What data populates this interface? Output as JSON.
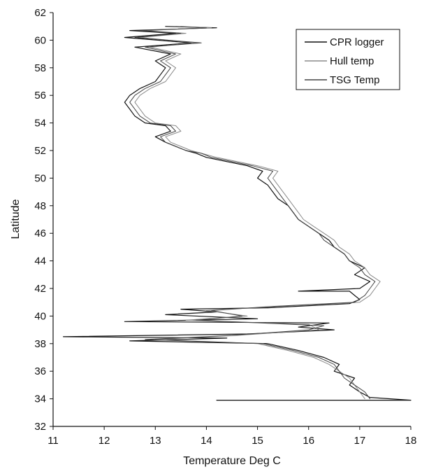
{
  "chart_data": {
    "type": "line",
    "title": "",
    "xlabel": "Temperature Deg C",
    "ylabel": "Latitude",
    "xlim": [
      11,
      18
    ],
    "ylim": [
      32,
      62
    ],
    "xticks": [
      "11",
      "12",
      "13",
      "14",
      "15",
      "16",
      "17",
      "18"
    ],
    "yticks": [
      "32",
      "34",
      "36",
      "38",
      "40",
      "42",
      "44",
      "46",
      "48",
      "50",
      "52",
      "54",
      "56",
      "58",
      "60",
      "62"
    ],
    "grid": false,
    "legend_position": "top-right",
    "series": [
      {
        "name": "CPR logger",
        "color": "#111111",
        "width": 1.2,
        "points": [
          [
            14.2,
            33.9
          ],
          [
            18.0,
            33.9
          ],
          [
            17.2,
            34.1
          ],
          [
            17.0,
            34.5
          ],
          [
            16.8,
            35.0
          ],
          [
            16.9,
            35.5
          ],
          [
            16.5,
            36.0
          ],
          [
            16.6,
            36.5
          ],
          [
            16.3,
            37.0
          ],
          [
            15.8,
            37.5
          ],
          [
            15.2,
            38.0
          ],
          [
            12.5,
            38.2
          ],
          [
            14.4,
            38.4
          ],
          [
            11.2,
            38.5
          ],
          [
            14.8,
            38.7
          ],
          [
            16.5,
            39.0
          ],
          [
            15.8,
            39.2
          ],
          [
            16.4,
            39.5
          ],
          [
            12.4,
            39.6
          ],
          [
            15.0,
            39.8
          ],
          [
            13.2,
            40.1
          ],
          [
            14.2,
            40.3
          ],
          [
            13.5,
            40.5
          ],
          [
            15.2,
            40.6
          ],
          [
            16.8,
            40.9
          ],
          [
            17.0,
            41.2
          ],
          [
            16.9,
            41.5
          ],
          [
            16.8,
            41.8
          ],
          [
            15.8,
            41.8
          ],
          [
            17.0,
            42.0
          ],
          [
            17.2,
            42.5
          ],
          [
            16.9,
            43.0
          ],
          [
            17.1,
            43.5
          ],
          [
            16.8,
            44.0
          ],
          [
            16.7,
            44.5
          ],
          [
            16.5,
            45.0
          ],
          [
            16.4,
            45.5
          ],
          [
            16.2,
            46.0
          ],
          [
            16.0,
            46.5
          ],
          [
            15.8,
            47.0
          ],
          [
            15.7,
            47.5
          ],
          [
            15.6,
            48.0
          ],
          [
            15.4,
            48.5
          ],
          [
            15.3,
            49.0
          ],
          [
            15.2,
            49.5
          ],
          [
            15.0,
            50.0
          ],
          [
            15.1,
            50.5
          ],
          [
            14.8,
            50.9
          ],
          [
            14.4,
            51.2
          ],
          [
            14.0,
            51.5
          ],
          [
            13.8,
            51.8
          ],
          [
            13.6,
            52.0
          ],
          [
            13.4,
            52.3
          ],
          [
            13.2,
            52.6
          ],
          [
            13.0,
            53.0
          ],
          [
            13.3,
            53.4
          ],
          [
            13.2,
            53.8
          ],
          [
            12.8,
            54.0
          ],
          [
            12.6,
            54.5
          ],
          [
            12.5,
            55.0
          ],
          [
            12.4,
            55.5
          ],
          [
            12.5,
            56.0
          ],
          [
            12.7,
            56.5
          ],
          [
            13.0,
            57.0
          ],
          [
            13.1,
            57.5
          ],
          [
            13.2,
            58.0
          ],
          [
            13.0,
            58.5
          ],
          [
            13.3,
            59.0
          ],
          [
            12.6,
            59.5
          ],
          [
            13.7,
            59.8
          ],
          [
            12.4,
            60.2
          ],
          [
            13.4,
            60.5
          ],
          [
            12.5,
            60.7
          ],
          [
            14.2,
            60.9
          ],
          [
            13.2,
            61.0
          ]
        ]
      },
      {
        "name": "Hull temp",
        "color": "#8a8a8a",
        "width": 1.0,
        "points": [
          [
            17.1,
            34.0
          ],
          [
            17.0,
            34.5
          ],
          [
            16.9,
            35.0
          ],
          [
            16.8,
            35.5
          ],
          [
            16.6,
            36.0
          ],
          [
            16.4,
            36.5
          ],
          [
            16.1,
            37.0
          ],
          [
            15.6,
            37.5
          ],
          [
            15.0,
            38.0
          ],
          [
            13.0,
            38.3
          ],
          [
            14.6,
            38.6
          ],
          [
            16.2,
            39.0
          ],
          [
            16.0,
            39.4
          ],
          [
            13.6,
            39.7
          ],
          [
            14.8,
            40.0
          ],
          [
            14.0,
            40.4
          ],
          [
            15.4,
            40.7
          ],
          [
            17.0,
            41.0
          ],
          [
            17.2,
            41.5
          ],
          [
            17.3,
            42.0
          ],
          [
            17.4,
            42.5
          ],
          [
            17.2,
            43.0
          ],
          [
            17.1,
            43.5
          ],
          [
            16.9,
            44.0
          ],
          [
            16.8,
            44.5
          ],
          [
            16.6,
            45.0
          ],
          [
            16.5,
            45.5
          ],
          [
            16.3,
            46.0
          ],
          [
            16.1,
            46.5
          ],
          [
            15.9,
            47.0
          ],
          [
            15.8,
            47.5
          ],
          [
            15.7,
            48.0
          ],
          [
            15.6,
            48.5
          ],
          [
            15.5,
            49.0
          ],
          [
            15.4,
            49.5
          ],
          [
            15.3,
            50.0
          ],
          [
            15.4,
            50.5
          ],
          [
            15.0,
            50.9
          ],
          [
            14.6,
            51.2
          ],
          [
            14.2,
            51.5
          ],
          [
            13.9,
            51.8
          ],
          [
            13.7,
            52.0
          ],
          [
            13.5,
            52.3
          ],
          [
            13.3,
            52.6
          ],
          [
            13.2,
            53.0
          ],
          [
            13.5,
            53.4
          ],
          [
            13.4,
            53.8
          ],
          [
            13.0,
            54.0
          ],
          [
            12.8,
            54.5
          ],
          [
            12.7,
            55.0
          ],
          [
            12.6,
            55.5
          ],
          [
            12.7,
            56.0
          ],
          [
            12.9,
            56.5
          ],
          [
            13.2,
            57.0
          ],
          [
            13.3,
            57.5
          ],
          [
            13.4,
            58.0
          ],
          [
            13.2,
            58.5
          ],
          [
            13.5,
            59.0
          ],
          [
            12.9,
            59.5
          ],
          [
            13.8,
            59.8
          ],
          [
            12.7,
            60.2
          ],
          [
            13.6,
            60.5
          ],
          [
            12.8,
            60.7
          ],
          [
            14.1,
            60.9
          ],
          [
            13.5,
            61.0
          ]
        ]
      },
      {
        "name": "TSG Temp",
        "color": "#444444",
        "width": 1.0,
        "points": [
          [
            17.2,
            34.0
          ],
          [
            17.1,
            34.5
          ],
          [
            16.9,
            35.0
          ],
          [
            16.7,
            35.5
          ],
          [
            16.6,
            36.0
          ],
          [
            16.5,
            36.5
          ],
          [
            16.2,
            37.0
          ],
          [
            15.7,
            37.5
          ],
          [
            15.1,
            38.0
          ],
          [
            12.8,
            38.3
          ],
          [
            14.5,
            38.6
          ],
          [
            16.0,
            39.0
          ],
          [
            16.3,
            39.3
          ],
          [
            13.8,
            39.7
          ],
          [
            14.7,
            40.0
          ],
          [
            14.1,
            40.4
          ],
          [
            15.3,
            40.7
          ],
          [
            16.9,
            41.0
          ],
          [
            17.1,
            41.5
          ],
          [
            17.2,
            42.0
          ],
          [
            17.3,
            42.5
          ],
          [
            17.1,
            43.0
          ],
          [
            17.0,
            43.5
          ],
          [
            16.8,
            44.0
          ],
          [
            16.7,
            44.5
          ],
          [
            16.5,
            45.0
          ],
          [
            16.3,
            45.5
          ],
          [
            16.2,
            46.0
          ],
          [
            16.0,
            46.5
          ],
          [
            15.8,
            47.0
          ],
          [
            15.7,
            47.5
          ],
          [
            15.6,
            48.0
          ],
          [
            15.5,
            48.5
          ],
          [
            15.4,
            49.0
          ],
          [
            15.3,
            49.5
          ],
          [
            15.2,
            50.0
          ],
          [
            15.3,
            50.5
          ],
          [
            14.9,
            50.9
          ],
          [
            14.5,
            51.2
          ],
          [
            14.1,
            51.5
          ],
          [
            13.9,
            51.8
          ],
          [
            13.6,
            52.0
          ],
          [
            13.4,
            52.3
          ],
          [
            13.2,
            52.6
          ],
          [
            13.1,
            53.0
          ],
          [
            13.4,
            53.4
          ],
          [
            13.3,
            53.8
          ],
          [
            12.9,
            54.0
          ],
          [
            12.7,
            54.5
          ],
          [
            12.6,
            55.0
          ],
          [
            12.5,
            55.5
          ],
          [
            12.6,
            56.0
          ],
          [
            12.8,
            56.5
          ],
          [
            13.1,
            57.0
          ],
          [
            13.2,
            57.5
          ],
          [
            13.3,
            58.0
          ],
          [
            13.1,
            58.5
          ],
          [
            13.4,
            59.0
          ],
          [
            12.8,
            59.5
          ],
          [
            13.9,
            59.8
          ],
          [
            12.6,
            60.2
          ],
          [
            13.5,
            60.5
          ],
          [
            12.7,
            60.7
          ],
          [
            14.0,
            60.9
          ],
          [
            13.4,
            61.0
          ]
        ]
      }
    ]
  }
}
